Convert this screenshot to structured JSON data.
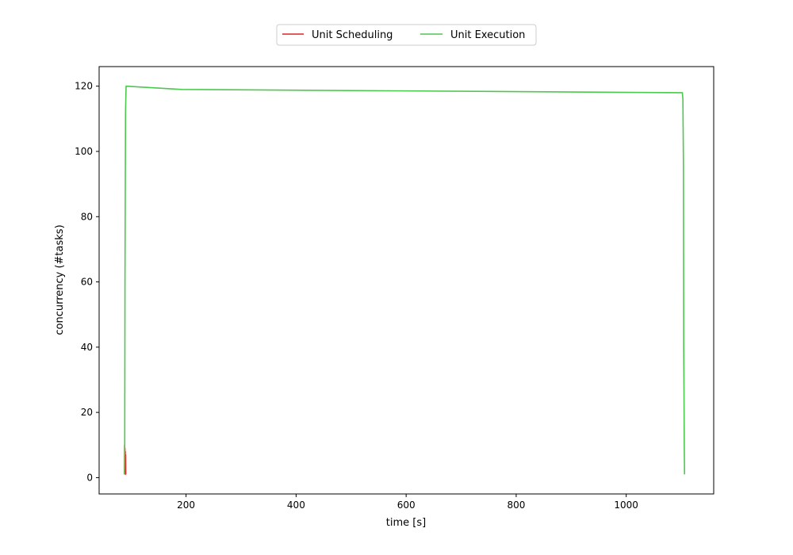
{
  "chart_data": {
    "type": "line",
    "title": "",
    "xlabel": "time [s]",
    "ylabel": "concurrency (#tasks)",
    "xlim": [
      42,
      1159
    ],
    "ylim": [
      -5,
      126
    ],
    "xticks": [
      200,
      400,
      600,
      800,
      1000
    ],
    "yticks": [
      0,
      20,
      40,
      60,
      80,
      100,
      120
    ],
    "grid": false,
    "legend_position": "top-center",
    "series": [
      {
        "name": "Unit Scheduling",
        "color": "#d62728",
        "x": [
          88,
          88.3,
          88.6,
          88.9,
          89.2,
          89.5,
          89.8,
          90.1,
          90.4,
          90.7
        ],
        "y": [
          1,
          10,
          2,
          9,
          3,
          8,
          2,
          7,
          1,
          1
        ]
      },
      {
        "name": "Unit Execution",
        "color": "#4cc94c",
        "x": [
          88,
          88.5,
          89,
          90,
          91,
          192,
          1102,
          1103,
          1104,
          1104.5,
          1105,
          1105.5,
          1106
        ],
        "y": [
          1,
          5,
          60,
          112,
          120,
          119,
          118,
          116,
          96,
          40,
          27,
          10,
          1
        ]
      }
    ]
  }
}
